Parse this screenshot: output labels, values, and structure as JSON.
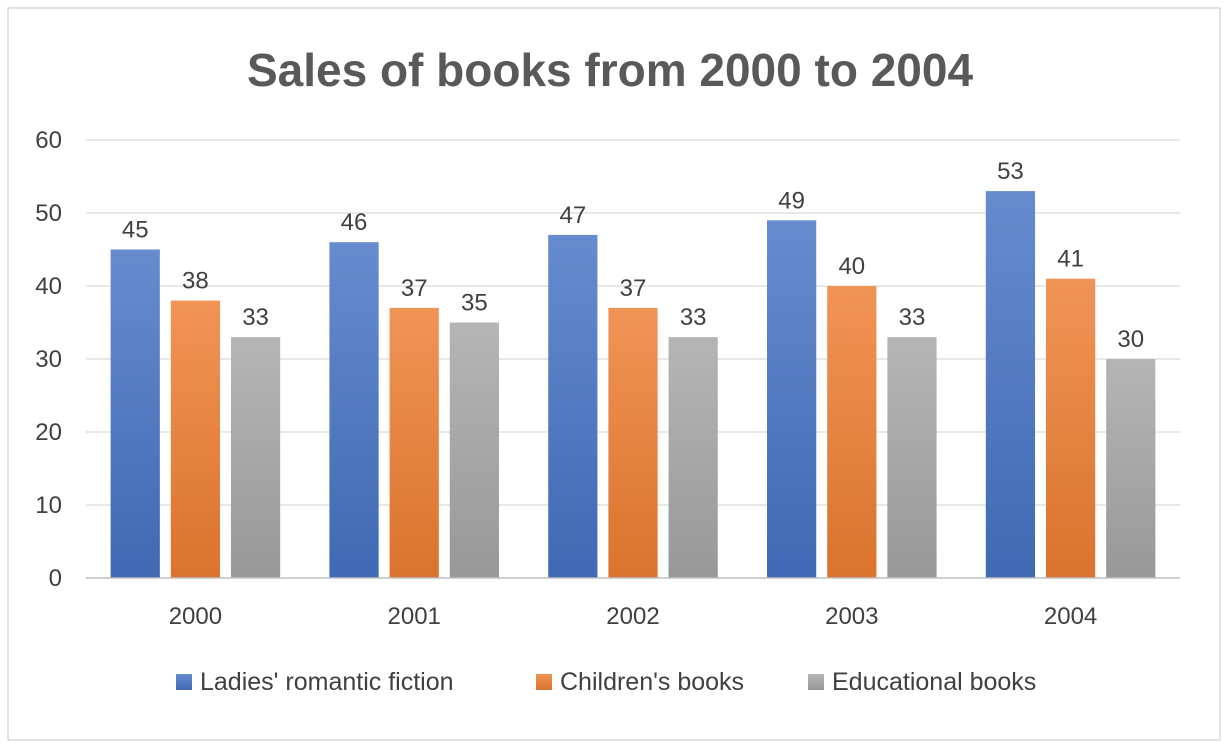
{
  "chart_data": {
    "type": "bar",
    "title": "Sales of books from 2000 to 2004",
    "xlabel": "",
    "ylabel": "",
    "categories": [
      "2000",
      "2001",
      "2002",
      "2003",
      "2004"
    ],
    "series": [
      {
        "name": "Ladies' romantic fiction",
        "values": [
          45,
          46,
          47,
          49,
          53
        ],
        "color": "#4472C4"
      },
      {
        "name": "Children's books",
        "values": [
          38,
          37,
          37,
          40,
          41
        ],
        "color": "#ED7D31"
      },
      {
        "name": "Educational books",
        "values": [
          33,
          35,
          33,
          33,
          30
        ],
        "color": "#A5A5A5"
      }
    ],
    "ylim": [
      0,
      60
    ],
    "yticks": [
      "0",
      "10",
      "20",
      "30",
      "40",
      "50",
      "60"
    ],
    "grid": true,
    "legend_position": "bottom"
  }
}
